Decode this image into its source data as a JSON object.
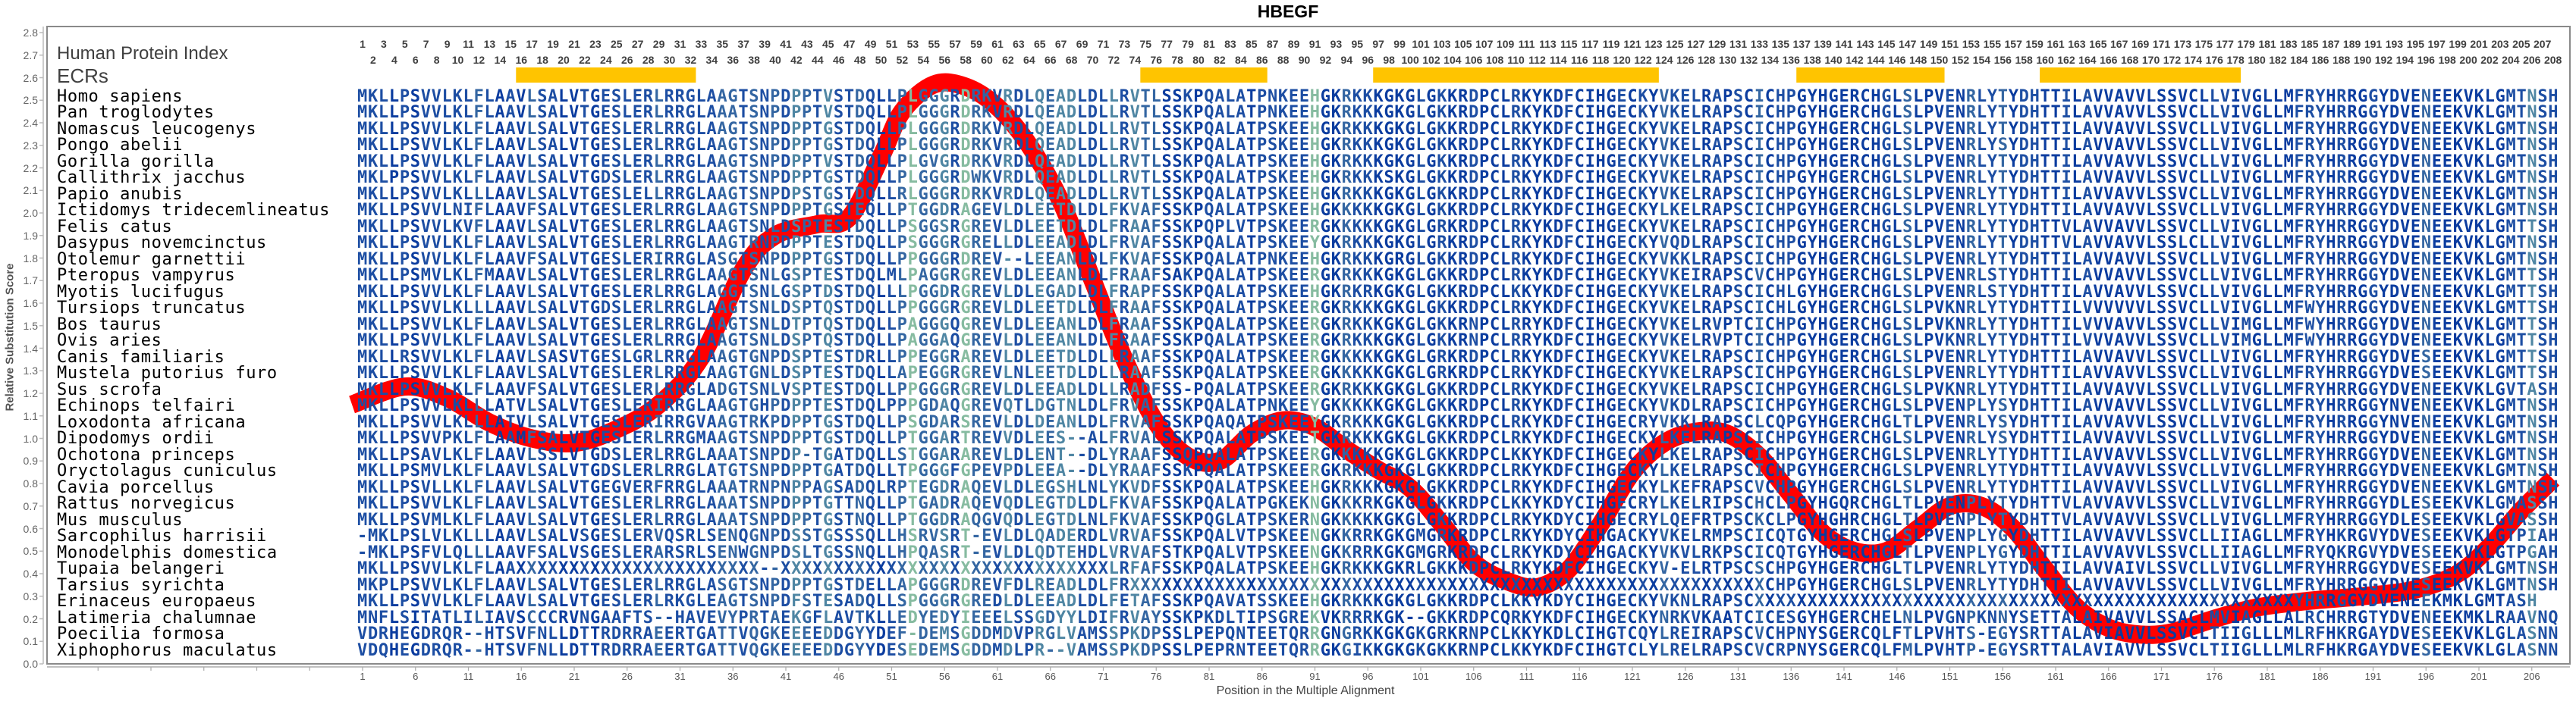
{
  "chart_data": {
    "type": "line",
    "title": "HBEGF",
    "xlabel": "Position in the Multiple Alignment",
    "ylabel": "Relative Substitution Score",
    "ylim": [
      0.0,
      2.8
    ],
    "xlim": [
      1,
      208
    ],
    "y_tick_labels": [
      "0.0",
      "0.1",
      "0.2",
      "0.3",
      "0.4",
      "0.5",
      "0.6",
      "0.7",
      "0.8",
      "0.9",
      "1.0",
      "1.1",
      "1.2",
      "1.3",
      "1.4",
      "1.5",
      "1.6",
      "1.7",
      "1.8",
      "1.9",
      "2.0",
      "2.1",
      "2.2",
      "2.3",
      "2.4",
      "2.5",
      "2.6",
      "2.7",
      "2.8"
    ],
    "x_tick_labels": [
      1,
      6,
      11,
      16,
      21,
      26,
      31,
      36,
      41,
      46,
      51,
      56,
      61,
      66,
      71,
      76,
      81,
      86,
      91,
      96,
      101,
      106,
      111,
      116,
      121,
      126,
      131,
      136,
      141,
      146,
      151,
      156,
      161,
      166,
      171,
      176,
      181,
      186,
      191,
      196,
      201,
      206
    ],
    "grid": false,
    "line_color": "#FF0000",
    "series": [
      {
        "x": [
          0,
          5,
          9,
          13,
          17,
          21,
          25,
          29,
          33,
          37,
          40,
          44,
          47,
          50,
          52,
          55,
          58,
          61,
          64,
          67,
          70,
          73,
          76,
          79,
          82,
          85,
          88,
          91,
          94,
          97,
          100,
          103,
          106,
          109,
          112,
          115,
          118,
          121,
          124,
          127,
          130,
          133,
          136,
          139,
          142,
          145,
          148,
          151,
          154,
          157,
          160,
          163,
          166,
          169,
          172,
          176,
          180,
          185,
          190,
          195,
          199,
          202,
          205,
          208
        ],
        "y": [
          1.15,
          1.23,
          1.18,
          1.07,
          1.0,
          0.98,
          1.04,
          1.15,
          1.36,
          1.75,
          1.9,
          1.95,
          1.98,
          2.25,
          2.45,
          2.57,
          2.56,
          2.47,
          2.3,
          2.05,
          1.7,
          1.35,
          1.07,
          0.92,
          0.9,
          1.02,
          1.08,
          1.05,
          0.95,
          0.86,
          0.78,
          0.62,
          0.45,
          0.37,
          0.34,
          0.42,
          0.62,
          0.85,
          0.98,
          1.03,
          1.02,
          0.92,
          0.75,
          0.58,
          0.5,
          0.5,
          0.6,
          0.7,
          0.7,
          0.6,
          0.42,
          0.25,
          0.16,
          0.13,
          0.14,
          0.2,
          0.25,
          0.28,
          0.3,
          0.33,
          0.4,
          0.52,
          0.68,
          0.82
        ]
      }
    ],
    "human_protein_index": {
      "label": "Human Protein Index",
      "first": 1,
      "last": 208
    },
    "ecrs": {
      "label": "ECRs",
      "color": "#FFC400",
      "regions": [
        [
          16,
          32
        ],
        [
          75,
          86
        ],
        [
          97,
          123
        ],
        [
          137,
          150
        ],
        [
          160,
          178
        ]
      ]
    },
    "residue_colors": [
      "#0b3c9f",
      "#1d4ea3",
      "#3466a2",
      "#4f86a3",
      "#86bba0"
    ],
    "alignment": [
      {
        "species": "Homo sapiens",
        "sequence": "MKLLPSVVLKLFLAAVLSALVTGESLERLRRGLAAGTSNPDPPTVSTDQLLPLGGGRDRKVRDLQEADLDLLRVTLSSKPQALATPNKEEHGKRKKKGKGLGKKRDPCLRKYKDFCIHGECKYVKELRAPSCICHPGYHGERCHGLSLPVENRLYTYDHTTILAVVAVVLSSVCLLVIVGLLMFRYHRRGGYDVENEEKVKLGMTNSH"
      },
      {
        "species": "Pan troglodytes",
        "sequence": "MKLLPSVVLKLFLAAVLSALVTGESLERLRRGLAAATSNPDPPTVSTDQLLPLGGGRDRKVRDLQEADLDLLRVTLSSKPQALATPNKEEHGKRKKKGKGLGKKRDPCLRKYKDFCIHGECKYVKELRAPSCICHPGYHGERCHGLSLPVENRLYTYDHTTILAVVAVVLSSVCLLVIVGLLMFRYHRRGGYDVENEEKVKLGMTNSH"
      },
      {
        "species": "Nomascus leucogenys",
        "sequence": "MKLLPSVVLKLFLAAVLSALVTGESLERLRRGLAAGTSNPDPPTGSTDQLLPLGGGRDRKVRDLQEADLDLLRVTLSSKPQALATPSKEEHGKRKKKGKGLGKKRDPCLRKYKDFCIHGECKYVKELRAPSCICHPGYHGERCHGLSLPVENRLYTYDHTTILAVVAVVLSSVCLLVIVGLLMFRYHRRGGYDVENEEKVKLGMTNSH"
      },
      {
        "species": "Pongo abelii",
        "sequence": "MKLLPSVVLKLFLAAVLSALVTGESLERLRRGLAAGTSNPDPPTGSTDQLLPLGGGRDRKVRDLQEADLDLLRVTLSSKPQALATPSKEEHGKRKKKGKGLGKKRDPCLRKYKDFCIHGECKYVKELRAPSCICHPGYHGERCHGLSLPVENRLYSYDHTTILAVVAVVLSSVCLLVIVGLLMFRYHRRGGYDVENEEKVKLGMTNSH"
      },
      {
        "species": "Gorilla gorilla",
        "sequence": "MKLLPSVVLKLFLAAVLSALVTGESLERLRRGLAAGTSNPDPPTVSTDQLLPLGVGRDRKVRDLQEADLDLLRVTLSSKPQALATPSKEEHGKRKKKGKGLGKKRDPCLRKYKDFCIHGECKYVKELRAPSCICHPGYHGERCHGLSLPVENRLYTYDHTTILAVVAVVLSSVCLLVIVGLLMFRYHRRGGYDVENEEKVKLGMTNSH"
      },
      {
        "species": "Callithrix jacchus",
        "sequence": "MKLPPSVVLKLFLAAVLSALVTGDSLERLRRGLAAGTSNPDPPTGSTDQLLPLGGGRDWKVRDLQEADLDLLRVTLSSKPQALATPSKEEHGKRKKKSKGLGKKRDPCLRKYKDFCIHGECKYVKELRAPSCICHPGYHGERCHGLSLPVENRLYTYDHTTILAVVAVVLSSVCLLVIVGLLMFRYHRRGGYDVENEEKVKLGMTNSH"
      },
      {
        "species": "Papio anubis",
        "sequence": "MKLLPSVVLKLLLAAVLSALVTGESLELLRRGLAAGTSNPDPSTGSTDQLLRLGGGRDRKVRDLQEADLDLLRVTLSSKPQALATPSKEEHGKRKKKGKGLGKKRDPCLRKYKDFCIHGECKYVKELRAPSCICHPGYHGERCHGLSLPVENRLYTYDHTTILAVVAVVLSSVCLLVIVGLLMFRYHRRGGYDVENEEKVKLGMTNSH"
      },
      {
        "species": "Ictidomys tridecemlineatus",
        "sequence": "MKLLPSVVLNIFLAAVFSALVTGESLERLRRGLAAGTSNPDPPTGSTEQLLPTGGDRAGEVLDLEETDLDLFKVAFSSKPQALATPSKEEHGKKKKKGKGLGKKRDPCLRKYKDFCIHGECKYLKELRAPSCICHPGYHGERCHGLSLPVENRLYTYDHTTILAVVAVVLSSVCLLVIVGLLMFRYHRRGGYDVENEEKVKLGMTNSH"
      },
      {
        "species": "Felis catus",
        "sequence": "MKLLPSVVLKVFLAAVLSALVTGESLERLRRGLAAGTSNLDSPTESTDQLLPSGGSRGREVLDLEETDLDLFRAAFSSKPQPLVTPSKEERGKKKKKGKGLGRKRDPCLRKYKDFCIHGECKYVKELRAPSCICHPGYHGERCHGLSLPVENRLYTYDHTTVLAVVAVVLSSVCLLVIVGLLMFRYHRRGGYDVENEEKVKLGMTTSH"
      },
      {
        "species": "Dasypus novemcinctus",
        "sequence": "MKLLPSVVLKLFLAAVLSALVTGESLERLRRGLAAGTRNPDPPTESTDQLLPSGGGRGRELLDLEEADLDLFRVAFSSKPQALATPSKEEYGKRKKKGKGLGRKRDPCLRKYKDFCIHGECKYVQDLRAPSCICHPGYHGERCHGLSLPVENRLYTYDHTTVLAVVAVVLSSLCLLVIVGLLMFRYHRRGGYDVENEEKVKLGMTNSH"
      },
      {
        "species": "Otolemur garnettii",
        "sequence": "MKLLPSVVLKLFLAAVFSALVTGESLERIRRGLASGTSNPDPPTGSTDQLLPPGGGRDREV--LEEANLDLFKVAFSSKPQALATPNKEEHGKRKKKGRGLGKKRDPCLRKYKDFCIHGECKYVKKLRAPSCICHPGYHGERCHGLSLPVENRLYTYDHTTILAVVAVVLSSVCLLVIVGLLMFRYHRRGGYDVENEEKVKLGMTNSH"
      },
      {
        "species": "Pteropus vampyrus",
        "sequence": "MKLLPSMVLKLFMAAVLSALVTGESLERLRRGLAAGTSNLGSPTESTDQLMLPAGGRGREVLDLEEANLDLFRAAFSAKPQALATPSKEERGKRKKKGKGLGKKRDPCLRKYKDFCIHGECKYVKEIRAPSCVCHPGYHGERCHGLSLPVENRLSTYDHTTILAVVAVVLSSVCLLVIVGLLMFRYHRRGGYDVENEEKVKLGMTTSH"
      },
      {
        "species": "Myotis lucifugus",
        "sequence": "MKLLPSVVLKLFLAAVLSALVTGESLERLRRGLAGGTSNLGSPTDSTDQLLLPGGDRGREVLDLEGADLDLFRAPFSSKPQALATPSKEEHGKRKRKGKGLGKKRDPCLKKYKDFCIHGECKYVKELRAPSCICHLGYHGERCHGLSLPVENRLSTYDHTTILAVVAVVLSSVCLLVIVGLLMFRYHRRGGYDVENEEKVKLGMTTSH"
      },
      {
        "species": "Tursiops truncatus",
        "sequence": "MKLLPSVVLKLLLAAVLSALVTGDSLERLRRGLAAGTSNLDSPTQSTDQLLPPGGGRGREVLDLEETDLDLFRAAFSSKPQALATPSKEERGKRKKKGKGLGKKRDPCLRKYKDFCIHGECKYVKELRAPSCICHLGYHGERCHGLSLPVKNRLYTYDHTTILVVVVVVLSSVCLLVIVGLLMFWYHRRGGYDVENEEKVKLGMTTSH"
      },
      {
        "species": "Bos taurus",
        "sequence": "MKLLPSVVLKLFLAAVLSALVTGESLERLRRGLAAGTSNLDTPTQSTDQLLPAGGGQGREVLDLEEANLDLFRAAFSSKPQALATPSKEERGKRKKKGKGLGKKRNPCLRRYKDFCIHGECKYVKELRVPTCICHPGYHGERCHGLSLPVKNRLYTYDHTTILVVVAVVLSSVCLLVIMGLLMFWYHRRGGYDVENEEKVKLGMTTSH"
      },
      {
        "species": "Ovis aries",
        "sequence": "MKLLPSVVLKLFLAAVLSALVTGESLERLRRGLAAGTSNLDSPTQSTDQLLPAGGAQGREVLDLEEANLDLFRAAFSSKPQALATPSKEERGKRKKKGKGLGKKRNPCLRRYKDFCIHGECKYVKELRVPTCICHPGYHGERCHGLSLPVKNRLYTYDHTTILVVVAVVLSSVCLLVIMGLLMFWYHRRGGYDVENEEKVKLGMTTSH"
      },
      {
        "species": "Canis familiaris",
        "sequence": "MKLLRSVVLKLFLAAVLSASVTGESLGRLRRGLAAGTGNPDSPTESTDRLLPPEGGRAREVLDLEETDLDLLRAAFSSKPQALATPSKEERGKKKKKGKGLGRKRDPCLRKYKDFCIHGECKYVKELRAPSCICHPGYHGERCHGLSLPVENRLYTYDHTTILAVVAVVLSSVCLLVIVGLLMFRYHRRGGYDVESEEKVKLGMTTSH"
      },
      {
        "species": "Mustela putorius furo",
        "sequence": "MKLLPSVVLKLFLAAVLSALVTGESLERLRRGLAAGTGNLDSPTESTDQLLAPEGGRGREVLNLEETDLDLLRAAFSSKPQALATPSKEERGKKKKKGKGLGRKRDPCLRKYKDFCIHGECKYVKELRAPSCICHPGYHGERCHGLSLPVENRLYTYDHTTILAVVAVVLSSVCLLVIVGLLMFRYHRRGGYDVESEEKVKLGMTTSH"
      },
      {
        "species": "Sus scrofa",
        "sequence": "MKLLPSVVLKLFLAAVFSALVTGESLERLRRGLADGTSNLVSPTESTDQLLPPGGGRGREVLDLEEADLDLLRADFSS-PQALATPSKEERGKRKKKGKGLGKKRDPCLRKYKDFCIHGECKYVKELRAPSCICHPGYHGERCHGLSLPVKNRLYTYDHTTILAVVAVVLSSVCLLVIVGLLMFRYHRRGGYDVENEEKVKLGVTASH"
      },
      {
        "species": "Echinops telfairi",
        "sequence": "MKLLPSVVLKLLLATVLSALVTGESLERIRRGLAAGTGHPDPPTESTDQLPPPGDAQGREVQTLDGTNLDLFRVAFSSKPQALATPNKEEYGKKKKKGKGLGKKRDPCLRKYKDFCIHGECKYVKDLRAPSCICHPGYHGERCHGLSLPVENPLYSYDHTTILAVVAVVLSSVCLLVIVGLLMFRYHRRGGYNVENEEKVKLGMTNSH"
      },
      {
        "species": "Loxodonta africana",
        "sequence": "MKLLPSVVLKLLLATVLSALVTGESLERIRRGVAAGTRKPDPPTGSTDQLLPSGDARSREVLDLDEANLDLFRVAFSSKPQAQATPSKEEYGKRKKKGKGLGKKRDPCLRKYKDFCIHGECRYVKKLRAPSCLCQPGYHGERCHGLTLPVENRLYSYDHTTILAVVAVVLSSVCLLVIVGLLMFRYHRRGGYNVENEEKVKLGMTNSH"
      },
      {
        "species": "Dipodomys ordii",
        "sequence": "MKLLPSVVPKLFLAAMFSALVTGESLERLRRGMAAGTSNPDPPTGSTDQLLPTGGARTREVVDLEES--ALFRVALSSKPQALATPSKEETGKRKKKGKGLGKKRDPCLRKYKDFCIHGECKYLKELRAPSCICHPGYHGERCHGLSLPVENRLYSYDHTTILAVVAVVLSSVCLLVIVGLLMFRYHRRGGYDVENEEKVKLGMTNSH"
      },
      {
        "species": "Ochotona princeps",
        "sequence": "MKLLPSAVLKLFLAAVLSSLVTGDSLERLRRGLAAATSNPDP-TGATDQLLSTGGARAREVLDLENT--DLYRAAFSSQPQALATPSKEERGKKKKKGKGLGKKRDPCLKKYKDFCIHGECKYLKELRAPSCICHPGYHGERCHGLSLPVENRLYTYDHTTILAVVAVVLSSVCLLVIVGLLMFRYHRRGGYDVENEEKVKLGMTNSH"
      },
      {
        "species": "Oryctolagus cuniculus",
        "sequence": "MKLLPSMVLKLFLAAVLSALVTGDSLERLRRGLATGTSNPDPPTGATDQLLTPGGGFGPEVPDLEEA--DLYRAAFSSKPQALATPSKEERGKRKKKGKGLGKKRDPCLRKYKDFCIHGECKYLKELRAPSCICHPGYHGERCHGLSLPVENRLYTYDHTTILAVVAVVLSSVCLLVIVGLLMFRYHRRGGYDVENEEKVKLGMTNSH"
      },
      {
        "species": "Cavia porcellus",
        "sequence": "MKLLPSVLLKLFLAAVLSALVTGEGVERFRRGLAAATRNPNPPAGSADQLRPTEGDRAQEVLDLEGSHLNLYKVDFSSKPQALATPSKEEHGKRKKKGKGLGKKRDPCLRKYKDFCIHGECKYLKEFRAPSCVCHPGYHGERCHGLSLPVENRLYTYDHTTILAVVAVVLSSVCLLVIVGLLMFRYHRRGGYDVENEEKVKLGMTNSH"
      },
      {
        "species": "Rattus norvegicus",
        "sequence": "MKLLPSVVLKLFLAAVLSALVTGESLERLRRGLAAATSNPDPPTGTTNQLLPTGADRAQEVQDLEGTDLDLFKVAFSSKPQALATPGKEKNGKKKRKGKGLGKKRDPCLKKYKDYCIHGECRYLKELRIPSCHCLPGYHGQRCHGLTLPVENPLYTYDHTTVLAVVAVVLSSVCLLVIVGLLMFRYHRRGGYDLESEEKVKLGMASSH"
      },
      {
        "species": "Mus musculus",
        "sequence": "MKLLPSVMLKLFLAAVLSALVTGESLERLRRGLAAATSNPDPPTGSTNQLLPTGGDRAQGVQDLEGTDLNLFKVAFSSKPQGLATPSKERNGKKKKKGKGLGKKRDPCLRKYKDYCIHGECRYLQEFRTPSCKCLPGYHGHRCHGLTLPVENPLYTYDHTTVLAVVAVVLSSVCLLVIVGLLMFRYHRRGGYDLESEEKVKLGVASSH"
      },
      {
        "species": "Sarcophilus harrisii",
        "sequence": "-MKLPSLVLKLLLAAVLSALVSGESLERVQSRLSENQGNPDSSTGSSSQLLHSRVSRT-EVLDLQADERDLVRVAFSSKPQALVTPSKEENGKKRRKGKGMGRKRDPCLRKYKDYCIHGACKYVKELRMPSCICQTGYHGERCHGLSLPVENPLYGYDHTTILAVVAVVLSSVCLLIIAGLLMFRYHKRGVYDVESEEKVKLGTPIAH"
      },
      {
        "species": "Monodelphis domestica",
        "sequence": "-MKLPSFVLQLLLAAVFSALVSGESLERARSRLSENWGNPDSLTGSSNQLLHPQASRT-EVLDLQDTEHDLVRVAFSTKPQALVTPSKEENGKKRRKGKGMGRKRDPCLRKYKDYCIHGACKYVKVLRKPSCICQTGYHGERCHGLTLPVENPLYGYDHTTILAVVAVVLSSVCLLIIAGLLMFRYQKRGVYDVESEEKVKLGTPGAH"
      },
      {
        "species": "Tupaia belangeri",
        "sequence": "MKLLPSVVLKLFLAAXXXXXXXXXXXXXXXXXXXXXXX--XXXXXXXXXXXXXXXXXXXXXXXXXXXXXXXLRFAFSSKPQALATPSKEEHGKRKKKGKRLGKKKDPCLRKYKDFCIHGECKYV-ELRTPSCSCHPGYHGERCHGLTLPVENRLYTYDHTTILAVVAIVLSSVCLLVIVGLLMFRYHRRGGYDVESEEKVKLGMTNSH"
      },
      {
        "species": "Tarsius syrichta",
        "sequence": "MKPLPSVVLKLFLAAVLSALVTGESLERLRRGLASGTSNPDPPTGSTDELLAPGGGRDREVFDLREADLDLFRXXXXXXXXXXXXXXXXXXXXXXXXXXXXXXXXXXXXXXXXXXXXXXXXXXXXXXXXXXXXCHPGYHGERCHGLSLPVENRLYTYDHTTILAVVAVVLSSVCLLVIVGLLMFRYHRRGGYDVESEEKVKLGMTNSH"
      },
      {
        "species": "Erinaceus europaeus",
        "sequence": "MKLLPSVVLKLFLAAVLSALVTGESLERLRKGLEAGTSNPDFSTESADQLLSPGGGRGREDLDLEEADLDLFETAFSSKPQAVATSSKEEHGKRKKKGKGLGKKRDPCLKKYKDYCIHGECKYVKNLRAPSCXXXXXXXXXXXXXXXXXXXXXXXXXXXXXXXXXXXXXXXXXXXXXXXXXXXYHRRGGYDVENEEKMKLGMTASH"
      },
      {
        "species": "Latimeria chalumnae",
        "sequence": "MNFLSITATLILIAVSCCCRVNGAAFTS--HAVEVYPRTAEKGFLAVTKLLEDYEDYIEEELSSGDYYLDIFRVAYSSKPKDLTIPSGREKVKRRRKGK--GKKRDPCQRKYKDFCIHGECKYNRKVKAATCICESGYHGERCHELNLPVGNPKNNYSETTALAIVAVVLSSACLMVIAGLLALRCHRRGTYDVENEEKMKLRAAVNQ"
      },
      {
        "species": "Poecilia formosa",
        "sequence": "VDRHEGDRQR--HTSVFNLLDTTRDRRAEERTGATTVQGKEEEEDDGYYDEF-DEMSGDDMDVPRGLVAMSSPKDPSSLPEPQNTEETQRRGNGRKKGKGKGRKRNPCLKKYKDLCIHGTCQYLREIRAPSCVCHPNYSGERCQLFTLPVHTS-EGYSRTTALAVIAVVLSSVCLTIIGLLLMLRFHKRGAYDVESEEKVKLGLASNN"
      },
      {
        "species": "Xiphophorus maculatus",
        "sequence": "VDQHEGDRQR--HTSVFNLLDTTRDRRAEERTGATTVQGKEEEEDDGYYDESEDEMSGDDMDLPR--VAMSSPKDPSSLPEPRNTEETQRRGKGIKKGKGKGKKRNPCLKKYKDFCIHGTCLYLRELRAPSCVCRPNYSGERCQLFMLPVHTP-EGYSRTTALAVIAVVLSSVCLTIIGLLLMLRFHKRGAYDVESEEKVKLGLASNN"
      }
    ]
  }
}
